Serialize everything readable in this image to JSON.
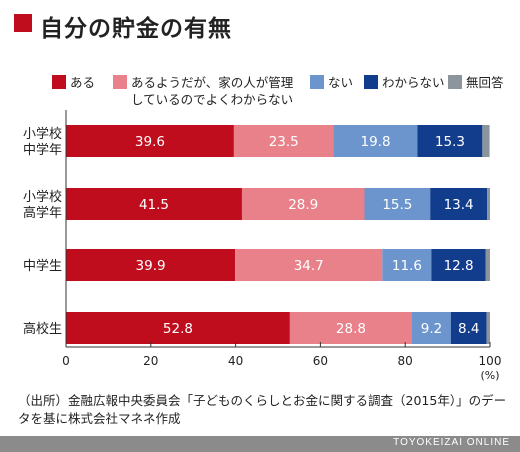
{
  "title": "自分の貯金の有無",
  "colors": {
    "title_mark": "#c00d1e",
    "footer_bg": "#8b8b8b"
  },
  "chart_data": {
    "type": "bar",
    "orientation": "horizontal",
    "stacked": true,
    "categories": [
      [
        "小学校",
        "中学年"
      ],
      [
        "小学校",
        "高学年"
      ],
      [
        "中学生"
      ],
      [
        "高校生"
      ]
    ],
    "series": [
      {
        "name": "ある",
        "color": "#c00d1e",
        "values": [
          39.6,
          41.5,
          39.9,
          52.8
        ]
      },
      {
        "name": "あるようだが、家の人が管理\nしているのでよくわからない",
        "color": "#e8818a",
        "values": [
          23.5,
          28.9,
          34.7,
          28.8
        ]
      },
      {
        "name": "ない",
        "color": "#6b95cc",
        "values": [
          19.8,
          15.5,
          11.6,
          9.2
        ]
      },
      {
        "name": "わからない",
        "color": "#123c8c",
        "values": [
          15.3,
          13.4,
          12.8,
          8.4
        ]
      },
      {
        "name": "無回答",
        "color": "#8c959b",
        "values": [
          1.7,
          0.7,
          1.0,
          0.8
        ]
      }
    ],
    "data_labels": [
      [
        "39.6",
        "23.5",
        "19.8",
        "15.3",
        ""
      ],
      [
        "41.5",
        "28.9",
        "15.5",
        "13.4",
        ""
      ],
      [
        "39.9",
        "34.7",
        "11.6",
        "12.8",
        ""
      ],
      [
        "52.8",
        "28.8",
        "9.2",
        "8.4",
        ""
      ]
    ],
    "xlim": [
      0,
      100
    ],
    "xticks": [
      0,
      20,
      40,
      60,
      80,
      100
    ],
    "xunit": "(%)",
    "legend_position": "top",
    "grid": false
  },
  "note": "（出所）金融広報中央委員会「子どものくらしとお金に関する調査（2015年）」のデータを基に株式会社マネネ作成",
  "footer": "TOYOKEIZAI ONLINE"
}
